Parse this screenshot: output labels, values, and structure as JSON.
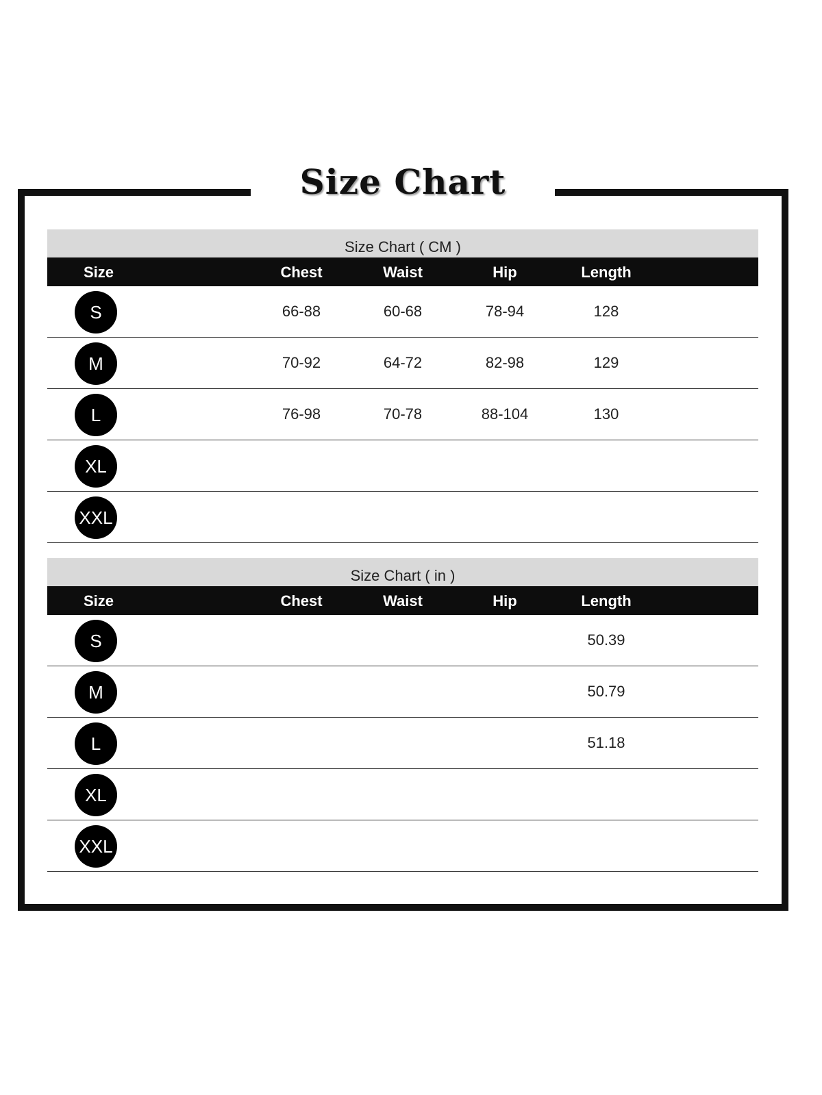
{
  "title": "Size Chart",
  "tables": [
    {
      "caption": "Size Chart ( CM )",
      "headers": [
        "Size",
        "Chest",
        "Waist",
        "Hip",
        "Length"
      ],
      "rows": [
        {
          "size": "S",
          "chest": "66-88",
          "waist": "60-68",
          "hip": "78-94",
          "length": "128"
        },
        {
          "size": "M",
          "chest": "70-92",
          "waist": "64-72",
          "hip": "82-98",
          "length": "129"
        },
        {
          "size": "L",
          "chest": "76-98",
          "waist": "70-78",
          "hip": "88-104",
          "length": "130"
        },
        {
          "size": "XL",
          "chest": "",
          "waist": "",
          "hip": "",
          "length": ""
        },
        {
          "size": "XXL",
          "chest": "",
          "waist": "",
          "hip": "",
          "length": ""
        }
      ]
    },
    {
      "caption": "Size Chart ( in )",
      "headers": [
        "Size",
        "Chest",
        "Waist",
        "Hip",
        "Length"
      ],
      "rows": [
        {
          "size": "S",
          "chest": "",
          "waist": "",
          "hip": "",
          "length": "50.39"
        },
        {
          "size": "M",
          "chest": "",
          "waist": "",
          "hip": "",
          "length": "50.79"
        },
        {
          "size": "L",
          "chest": "",
          "waist": "",
          "hip": "",
          "length": "51.18"
        },
        {
          "size": "XL",
          "chest": "",
          "waist": "",
          "hip": "",
          "length": ""
        },
        {
          "size": "XXL",
          "chest": "",
          "waist": "",
          "hip": "",
          "length": ""
        }
      ]
    }
  ]
}
